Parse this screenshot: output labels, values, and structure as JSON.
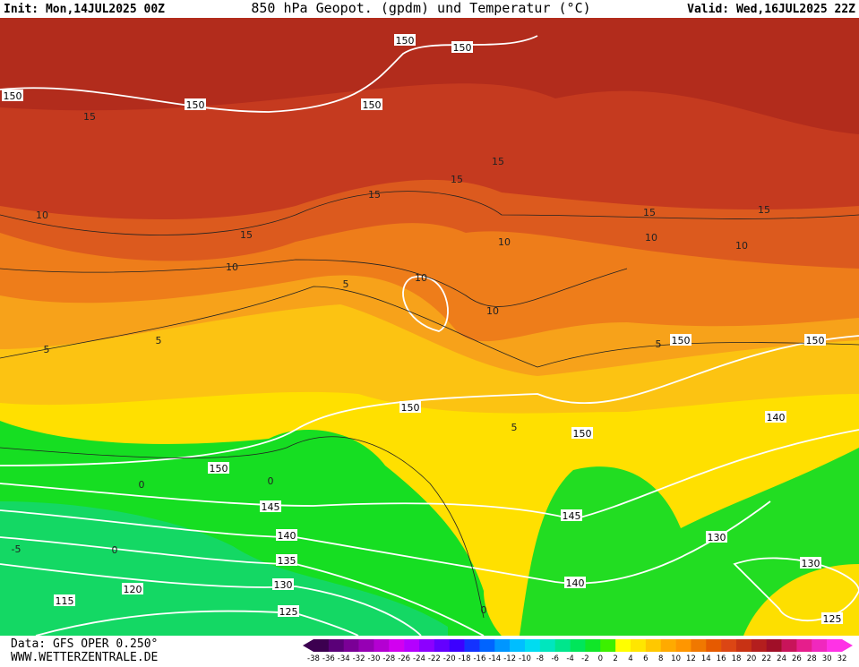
{
  "header": {
    "init": "Init: Mon,14JUL2025 00Z",
    "title": "850 hPa Geopot. (gpdm) und Temperatur (°C)",
    "valid": "Valid: Wed,16JUL2025 22Z"
  },
  "footer": {
    "data": "Data: GFS OPER 0.250°",
    "site": "WWW.WETTERZENTRALE.DE"
  },
  "contour_labels": [
    150,
    150,
    150,
    150,
    150,
    150,
    150,
    150,
    150,
    150,
    145,
    145,
    140,
    140,
    140,
    135,
    130,
    130,
    130,
    125,
    125,
    120,
    115,
    15,
    15,
    15,
    15,
    15,
    15,
    15,
    10,
    10,
    10,
    10,
    10,
    10,
    10,
    5,
    5,
    5,
    5,
    5,
    0,
    0,
    0,
    0,
    -5
  ],
  "colorbar": {
    "ticks": [
      -38,
      -36,
      -34,
      -32,
      -30,
      -28,
      -26,
      -24,
      -22,
      -20,
      -18,
      -16,
      -14,
      -12,
      -10,
      -8,
      -6,
      -4,
      -2,
      0,
      2,
      4,
      6,
      8,
      10,
      12,
      14,
      16,
      18,
      20,
      22,
      24,
      26,
      28,
      30,
      32
    ],
    "colors": [
      "#3c0050",
      "#5a0078",
      "#7a0096",
      "#9600b4",
      "#b400d2",
      "#d200f0",
      "#b400ff",
      "#8c00ff",
      "#6400ff",
      "#3c00ff",
      "#1432ff",
      "#0064ff",
      "#0096ff",
      "#00beff",
      "#00dcf0",
      "#00e6be",
      "#00e68c",
      "#00e65a",
      "#10e628",
      "#3cf000",
      "#ffff00",
      "#ffe600",
      "#ffc800",
      "#ffaa00",
      "#ff9600",
      "#f07800",
      "#e65a00",
      "#dc4614",
      "#c83214",
      "#b41e1e",
      "#a00f28",
      "#c8145a",
      "#e61e8c",
      "#f028be",
      "#ff32e6"
    ]
  }
}
